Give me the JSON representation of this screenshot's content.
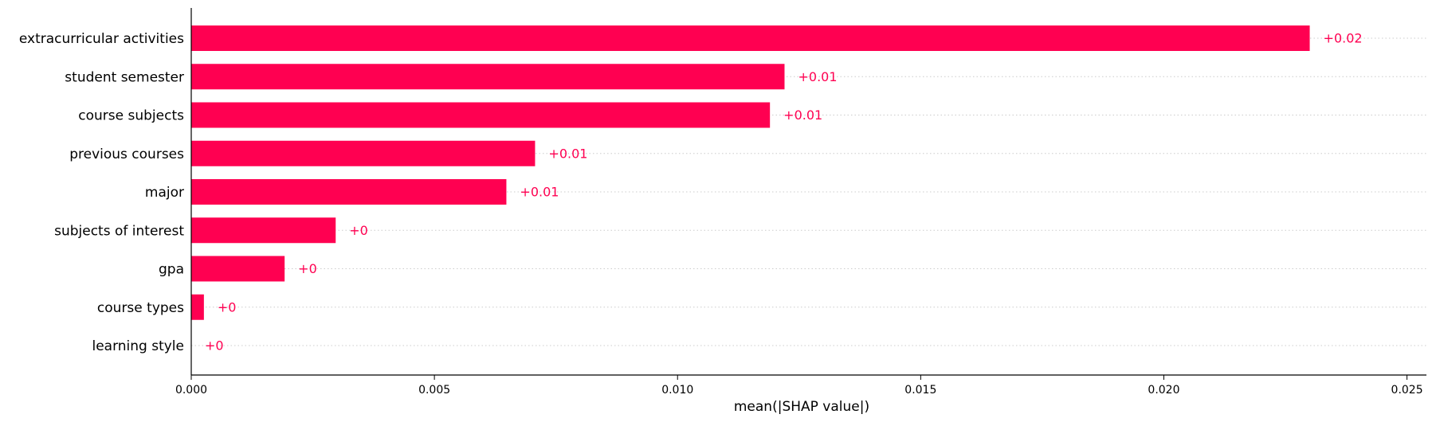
{
  "chart_data": {
    "type": "bar",
    "orientation": "horizontal",
    "categories": [
      "extracurricular activities",
      "student semester",
      "course subjects",
      "previous courses",
      "major",
      "subjects of interest",
      "gpa",
      "course types",
      "learning style"
    ],
    "values": [
      0.023,
      0.0122,
      0.0119,
      0.00707,
      0.00648,
      0.00297,
      0.00192,
      0.00026,
      0.0
    ],
    "value_labels": [
      "+0.02",
      "+0.01",
      "+0.01",
      "+0.01",
      "+0.01",
      "+0",
      "+0",
      "+0",
      "+0"
    ],
    "title": "",
    "xlabel": "mean(|SHAP value|)",
    "ylabel": "",
    "xlim": [
      0,
      0.0254
    ],
    "xticks": [
      0.0,
      0.005,
      0.01,
      0.015,
      0.02,
      0.025
    ],
    "xtick_labels": [
      "0.000",
      "0.005",
      "0.010",
      "0.015",
      "0.020",
      "0.025"
    ],
    "grid": "dotted horizontal lines per category",
    "legend": "none",
    "colors": {
      "bar": "#ff0051",
      "value_label": "#ff0051",
      "axis": "#000000",
      "gridline": "#cccccc"
    }
  }
}
